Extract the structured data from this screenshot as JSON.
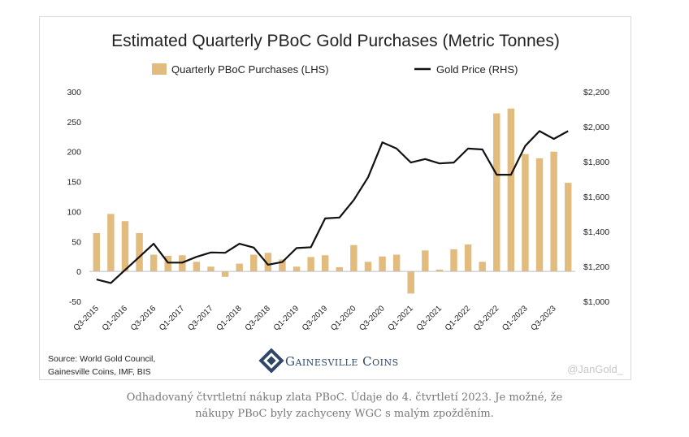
{
  "chart_data": {
    "type": "bar+line",
    "title": "Estimated Quarterly PBoC Gold Purchases (Metric Tonnes)",
    "categories": [
      "Q3-2015",
      "Q4-2015",
      "Q1-2016",
      "Q2-2016",
      "Q3-2016",
      "Q4-2016",
      "Q1-2017",
      "Q2-2017",
      "Q3-2017",
      "Q4-2017",
      "Q1-2018",
      "Q2-2018",
      "Q3-2018",
      "Q4-2018",
      "Q1-2019",
      "Q2-2019",
      "Q3-2019",
      "Q4-2019",
      "Q1-2020",
      "Q2-2020",
      "Q3-2020",
      "Q4-2020",
      "Q1-2021",
      "Q2-2021",
      "Q3-2021",
      "Q4-2021",
      "Q1-2022",
      "Q2-2022",
      "Q3-2022",
      "Q4-2022",
      "Q1-2023",
      "Q2-2023",
      "Q3-2023",
      "Q4-2023"
    ],
    "x_tick_labels": [
      "Q3-2015",
      "Q1-2016",
      "Q3-2016",
      "Q1-2017",
      "Q3-2017",
      "Q1-2018",
      "Q3-2018",
      "Q1-2019",
      "Q3-2019",
      "Q1-2020",
      "Q3-2020",
      "Q1-2021",
      "Q3-2021",
      "Q1-2022",
      "Q3-2022",
      "Q1-2023",
      "Q3-2023"
    ],
    "series": [
      {
        "name": "Quarterly PBoC Purchases (LHS)",
        "type": "bar",
        "axis": "left",
        "color": "#e2bb7e",
        "values": [
          64,
          96,
          84,
          64,
          28,
          26,
          27,
          16,
          8,
          -9,
          13,
          28,
          31,
          20,
          8,
          24,
          27,
          7,
          44,
          16,
          25,
          28,
          -37,
          35,
          3,
          37,
          45,
          16,
          264,
          272,
          196,
          189,
          200,
          148
        ]
      },
      {
        "name": "Gold Price (RHS)",
        "type": "line",
        "axis": "right",
        "color": "#111111",
        "values": [
          1125,
          1105,
          1180,
          1255,
          1330,
          1222,
          1222,
          1255,
          1280,
          1278,
          1330,
          1308,
          1210,
          1225,
          1305,
          1310,
          1475,
          1480,
          1580,
          1710,
          1910,
          1875,
          1795,
          1815,
          1790,
          1795,
          1875,
          1870,
          1725,
          1725,
          1890,
          1975,
          1930,
          1975
        ]
      }
    ],
    "y_left": {
      "min": -50,
      "max": 300,
      "ticks": [
        "-50",
        "0",
        "50",
        "100",
        "150",
        "200",
        "250",
        "300"
      ]
    },
    "y_right": {
      "min": 1000,
      "max": 2200,
      "ticks": [
        "$1,000",
        "$1,200",
        "$1,400",
        "$1,600",
        "$1,800",
        "$2,000",
        "$2,200"
      ]
    },
    "grid": false,
    "legend_position": "top-center"
  },
  "source_text": [
    "Source: World Gold Council,",
    "Gainesville Coins, IMF, BIS"
  ],
  "logo_text": "Gainesville Coins",
  "watermark": "@JanGold_",
  "caption": [
    "Odhadovaný čtvrtletní nákup zlata PBoC. Údaje do 4. čtvrtletí 2023. Je možné, že",
    "nákupy PBoC byly zachyceny WGC s malým zpožděním."
  ],
  "colors": {
    "bar": "#e2bb7e",
    "line": "#111111",
    "axis_text": "#222222",
    "logo": "#2e4766",
    "watermark": "#c8c8c8"
  }
}
